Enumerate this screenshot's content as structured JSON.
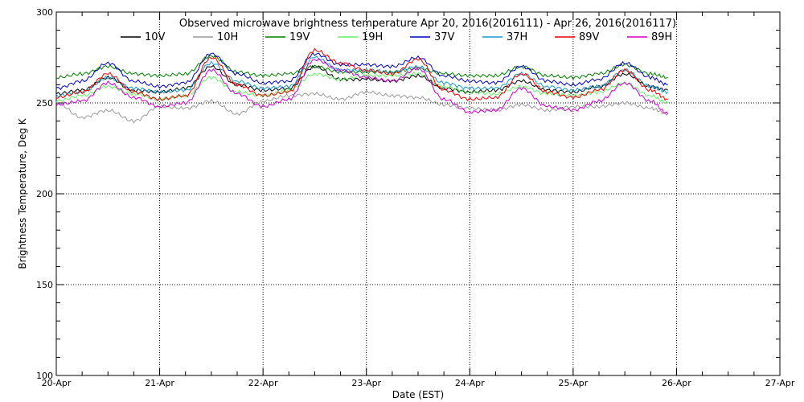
{
  "chart_data": {
    "type": "line",
    "title": "Observed microwave brightness temperature Apr 20, 2016(2016111) - Apr 26, 2016(2016117)",
    "xlabel": "Date (EST)",
    "ylabel": "Brightness Temperature, Deg K",
    "xlim": [
      "2016-04-20T00:00",
      "2016-04-27T00:00"
    ],
    "ylim": [
      100,
      300
    ],
    "x_tick_labels": [
      "20-Apr",
      "21-Apr",
      "22-Apr",
      "23-Apr",
      "24-Apr",
      "25-Apr",
      "26-Apr",
      "27-Apr"
    ],
    "y_tick_labels": [
      "100",
      "150",
      "200",
      "250",
      "300"
    ],
    "grid": true,
    "legend_position": "top",
    "x": [
      "2016-04-20T00:00",
      "2016-04-20T06:00",
      "2016-04-20T12:00",
      "2016-04-20T18:00",
      "2016-04-21T00:00",
      "2016-04-21T06:00",
      "2016-04-21T12:00",
      "2016-04-21T18:00",
      "2016-04-22T00:00",
      "2016-04-22T06:00",
      "2016-04-22T12:00",
      "2016-04-22T18:00",
      "2016-04-23T00:00",
      "2016-04-23T06:00",
      "2016-04-23T12:00",
      "2016-04-23T18:00",
      "2016-04-24T00:00",
      "2016-04-24T06:00",
      "2016-04-24T12:00",
      "2016-04-24T18:00",
      "2016-04-25T00:00",
      "2016-04-25T06:00",
      "2016-04-25T12:00",
      "2016-04-25T18:00",
      "2016-04-25T22:00"
    ],
    "series": [
      {
        "name": "10V",
        "color": "#000000",
        "values": [
          255,
          257,
          264,
          257,
          256,
          258,
          270,
          260,
          257,
          258,
          270,
          263,
          263,
          262,
          265,
          258,
          256,
          257,
          262,
          257,
          256,
          259,
          266,
          259,
          257
        ]
      },
      {
        "name": "10H",
        "color": "#999999",
        "values": [
          250,
          242,
          246,
          240,
          248,
          247,
          251,
          244,
          251,
          254,
          255,
          252,
          256,
          254,
          253,
          249,
          247,
          246,
          249,
          246,
          248,
          248,
          250,
          247,
          244
        ]
      },
      {
        "name": "19V",
        "color": "#008000",
        "values": [
          264,
          266,
          270,
          266,
          265,
          266,
          276,
          267,
          265,
          266,
          270,
          267,
          267,
          267,
          269,
          266,
          265,
          265,
          270,
          265,
          264,
          266,
          271,
          266,
          264
        ]
      },
      {
        "name": "19H",
        "color": "#66ee66",
        "values": [
          251,
          254,
          259,
          255,
          252,
          254,
          264,
          256,
          254,
          257,
          266,
          263,
          265,
          265,
          266,
          259,
          256,
          255,
          259,
          255,
          254,
          256,
          261,
          254,
          250
        ]
      },
      {
        "name": "37V",
        "color": "#0000bb",
        "values": [
          258,
          262,
          272,
          262,
          259,
          261,
          277,
          266,
          261,
          262,
          277,
          271,
          271,
          270,
          275,
          265,
          262,
          261,
          270,
          262,
          260,
          263,
          272,
          264,
          260
        ]
      },
      {
        "name": "37H",
        "color": "#1199cc",
        "values": [
          254,
          256,
          264,
          258,
          256,
          257,
          272,
          262,
          258,
          259,
          275,
          268,
          268,
          267,
          270,
          261,
          258,
          258,
          266,
          259,
          257,
          259,
          268,
          259,
          256
        ]
      },
      {
        "name": "89V",
        "color": "#ee0000",
        "values": [
          253,
          256,
          266,
          256,
          252,
          254,
          275,
          260,
          254,
          256,
          279,
          272,
          268,
          266,
          274,
          257,
          252,
          253,
          266,
          256,
          253,
          257,
          268,
          257,
          252
        ]
      },
      {
        "name": "89H",
        "color": "#cc00cc",
        "values": [
          249,
          251,
          261,
          253,
          248,
          250,
          268,
          255,
          248,
          252,
          274,
          268,
          264,
          262,
          269,
          252,
          245,
          246,
          258,
          248,
          246,
          251,
          261,
          251,
          244
        ]
      }
    ]
  }
}
